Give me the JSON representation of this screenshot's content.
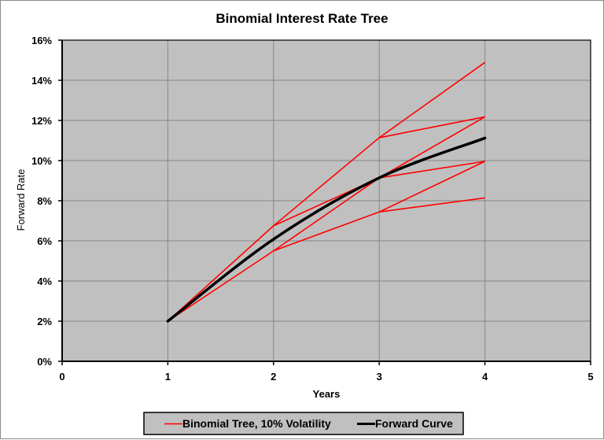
{
  "chart_data": {
    "type": "line",
    "title": "Binomial Interest Rate Tree",
    "xlabel": "Years",
    "ylabel": "Forward Rate",
    "xlim": [
      0,
      5
    ],
    "ylim": [
      0,
      16
    ],
    "x_ticks": [
      "0",
      "1",
      "2",
      "3",
      "4",
      "5"
    ],
    "y_ticks": [
      "0%",
      "2%",
      "4%",
      "6%",
      "8%",
      "10%",
      "12%",
      "14%",
      "16%"
    ],
    "grid": true,
    "plot_background": "#c0c0c0",
    "legend_position": "bottom",
    "series": [
      {
        "name": "Binomial Tree, 10% Volatility",
        "color": "#ff0000",
        "nodes": [
          {
            "x": 1,
            "values": [
              2.0
            ]
          },
          {
            "x": 2,
            "values": [
              6.75,
              5.5
            ]
          },
          {
            "x": 3,
            "values": [
              11.14,
              9.14,
              7.44
            ]
          },
          {
            "x": 4,
            "values": [
              14.89,
              12.18,
              9.96,
              8.14
            ]
          }
        ],
        "segments": [
          [
            [
              1,
              2.0
            ],
            [
              2,
              6.75
            ]
          ],
          [
            [
              1,
              2.0
            ],
            [
              2,
              5.5
            ]
          ],
          [
            [
              2,
              6.75
            ],
            [
              3,
              11.14
            ]
          ],
          [
            [
              2,
              6.75
            ],
            [
              3,
              9.14
            ]
          ],
          [
            [
              2,
              5.5
            ],
            [
              3,
              9.14
            ]
          ],
          [
            [
              2,
              5.5
            ],
            [
              3,
              7.44
            ]
          ],
          [
            [
              3,
              11.14
            ],
            [
              4,
              14.89
            ]
          ],
          [
            [
              3,
              11.14
            ],
            [
              4,
              12.18
            ]
          ],
          [
            [
              3,
              9.14
            ],
            [
              4,
              12.18
            ]
          ],
          [
            [
              3,
              9.14
            ],
            [
              4,
              9.96
            ]
          ],
          [
            [
              3,
              7.44
            ],
            [
              4,
              9.96
            ]
          ],
          [
            [
              3,
              7.44
            ],
            [
              4,
              8.14
            ]
          ]
        ]
      },
      {
        "name": "Forward Curve",
        "color": "#000000",
        "x": [
          1,
          2,
          3,
          4
        ],
        "values": [
          2.0,
          6.08,
          9.14,
          11.12
        ],
        "smooth": true
      }
    ]
  },
  "legend": {
    "items": [
      {
        "label": "Binomial Tree, 10% Volatility",
        "color": "#ff0000"
      },
      {
        "label": "Forward Curve",
        "color": "#000000"
      }
    ]
  }
}
